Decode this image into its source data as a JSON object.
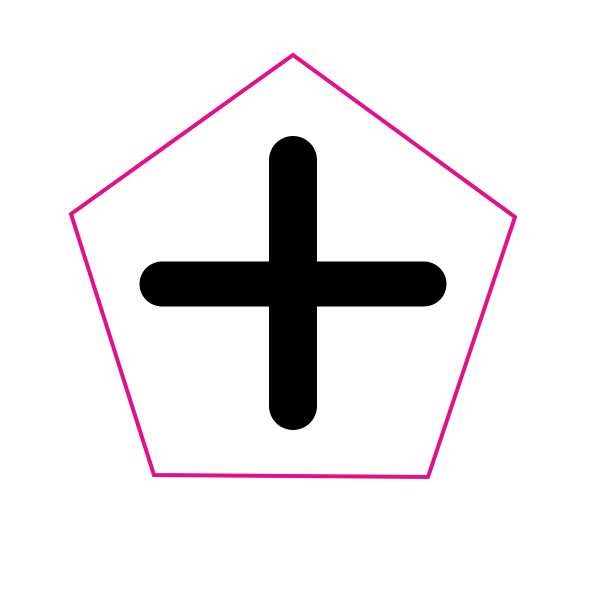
{
  "shape": {
    "name": "pentagon",
    "stroke_color": "#e0118a",
    "fill_color": "#ffffff"
  },
  "icon": {
    "name": "plus-icon",
    "color": "#000000"
  }
}
